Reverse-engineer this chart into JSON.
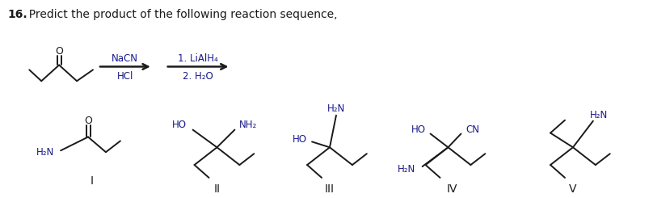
{
  "title_number": "16.",
  "title_text": "  Predict the product of the following reaction sequence,",
  "background_color": "#ffffff",
  "text_color": "#1a1a8c",
  "black_color": "#1a1a1a",
  "fig_width": 8.08,
  "fig_height": 2.45,
  "reagent1_above": "NaCN",
  "reagent1_below": "HCl",
  "reagent2_above": "1. LiAlH₄",
  "reagent2_below": "2. H₂O"
}
